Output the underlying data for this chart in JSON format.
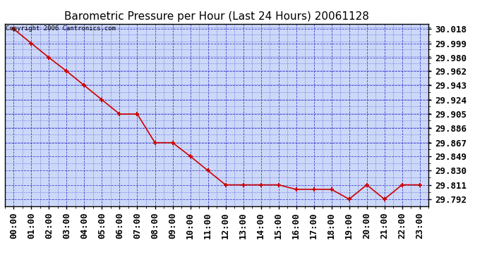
{
  "title": "Barometric Pressure per Hour (Last 24 Hours) 20061128",
  "copyright": "Copyright 2006 Cantronics.com",
  "hours": [
    "00:00",
    "01:00",
    "02:00",
    "03:00",
    "04:00",
    "05:00",
    "06:00",
    "07:00",
    "08:00",
    "09:00",
    "10:00",
    "11:00",
    "12:00",
    "13:00",
    "14:00",
    "15:00",
    "16:00",
    "17:00",
    "18:00",
    "19:00",
    "20:00",
    "21:00",
    "22:00",
    "23:00"
  ],
  "values": [
    30.018,
    29.999,
    29.98,
    29.962,
    29.943,
    29.924,
    29.905,
    29.905,
    29.867,
    29.867,
    29.849,
    29.83,
    29.811,
    29.811,
    29.811,
    29.811,
    29.805,
    29.805,
    29.805,
    29.792,
    29.811,
    29.792,
    29.811,
    29.811
  ],
  "yticks": [
    29.792,
    29.811,
    29.83,
    29.849,
    29.867,
    29.886,
    29.905,
    29.924,
    29.943,
    29.962,
    29.98,
    29.999,
    30.018
  ],
  "ylim_min": 29.783,
  "ylim_max": 30.025,
  "line_color": "#cc0000",
  "marker_color": "#cc0000",
  "fig_bg_color": "#ffffff",
  "plot_bg_color": "#ccd8f8",
  "grid_color": "#3333cc",
  "border_color": "#000000",
  "title_fontsize": 11,
  "tick_fontsize": 9,
  "copyright_fontsize": 6.5
}
